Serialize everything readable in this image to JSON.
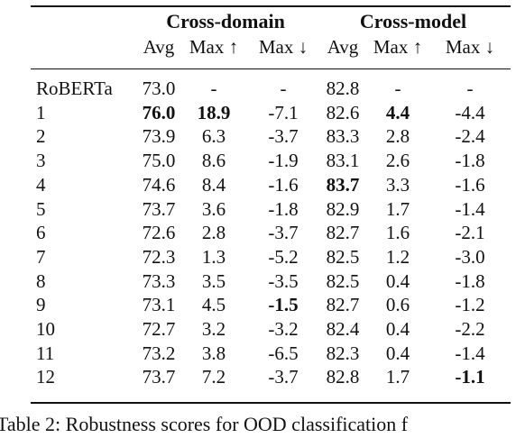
{
  "table": {
    "group_headers": [
      "Cross-domain",
      "Cross-model"
    ],
    "sub_headers": [
      "Avg",
      "Max ↑",
      "Max ↓",
      "Avg",
      "Max ↑",
      "Max ↓"
    ],
    "rows": [
      {
        "label": "RoBERTa",
        "values": [
          "73.0",
          "-",
          "-",
          "82.8",
          "-",
          "-"
        ],
        "bold": []
      },
      {
        "label": "1",
        "values": [
          "76.0",
          "18.9",
          "-7.1",
          "82.6",
          "4.4",
          "-4.4"
        ],
        "bold": [
          0,
          1,
          4
        ]
      },
      {
        "label": "2",
        "values": [
          "73.9",
          "6.3",
          "-3.7",
          "83.3",
          "2.8",
          "-2.4"
        ],
        "bold": []
      },
      {
        "label": "3",
        "values": [
          "75.0",
          "8.6",
          "-1.9",
          "83.1",
          "2.6",
          "-1.8"
        ],
        "bold": []
      },
      {
        "label": "4",
        "values": [
          "74.6",
          "8.4",
          "-1.6",
          "83.7",
          "3.3",
          "-1.6"
        ],
        "bold": [
          3
        ]
      },
      {
        "label": "5",
        "values": [
          "73.7",
          "3.6",
          "-1.8",
          "82.9",
          "1.7",
          "-1.4"
        ],
        "bold": []
      },
      {
        "label": "6",
        "values": [
          "72.6",
          "2.8",
          "-3.7",
          "82.7",
          "1.6",
          "-2.1"
        ],
        "bold": []
      },
      {
        "label": "7",
        "values": [
          "72.3",
          "1.3",
          "-5.2",
          "82.5",
          "1.2",
          "-3.0"
        ],
        "bold": []
      },
      {
        "label": "8",
        "values": [
          "73.3",
          "3.5",
          "-3.5",
          "82.5",
          "0.4",
          "-1.8"
        ],
        "bold": []
      },
      {
        "label": "9",
        "values": [
          "73.1",
          "4.5",
          "-1.5",
          "82.7",
          "0.6",
          "-1.2"
        ],
        "bold": [
          2
        ]
      },
      {
        "label": "10",
        "values": [
          "72.7",
          "3.2",
          "-3.2",
          "82.4",
          "0.4",
          "-2.2"
        ],
        "bold": []
      },
      {
        "label": "11",
        "values": [
          "73.2",
          "3.8",
          "-6.5",
          "82.3",
          "0.4",
          "-1.4"
        ],
        "bold": []
      },
      {
        "label": "12",
        "values": [
          "73.7",
          "7.2",
          "-3.7",
          "82.8",
          "1.7",
          "-1.1"
        ],
        "bold": [
          5
        ]
      }
    ]
  },
  "caption": "Table 2: Robustness scores for OOD classification f"
}
